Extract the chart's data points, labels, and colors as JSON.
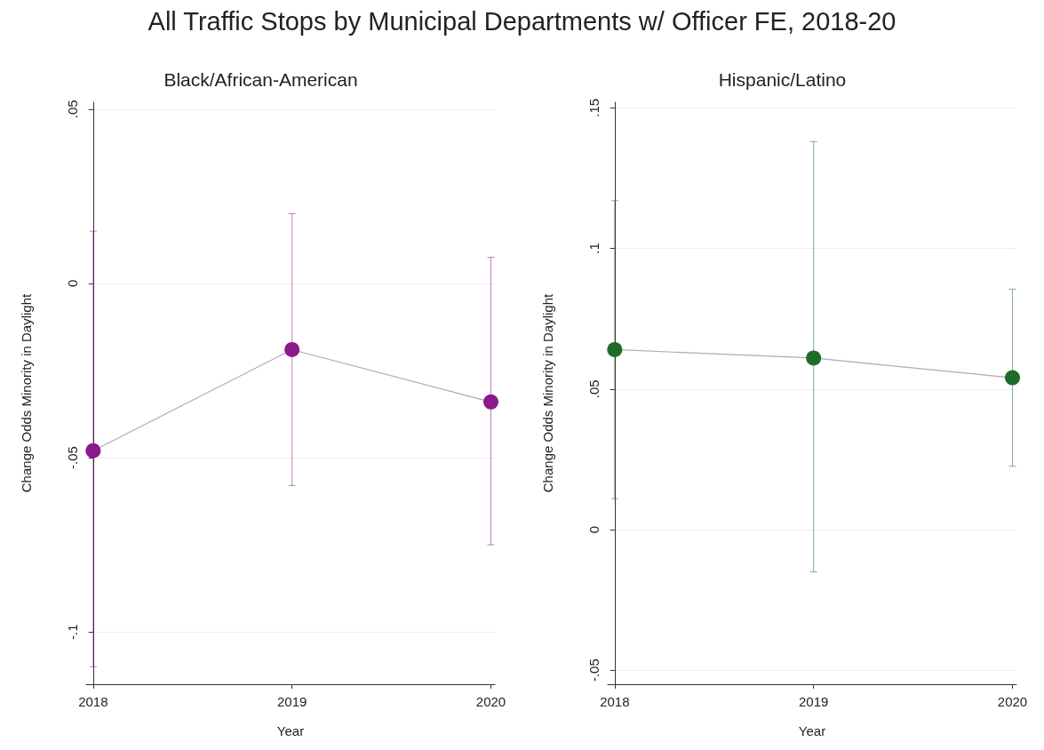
{
  "chart_data": [
    {
      "type": "line",
      "title": "Black/African-American",
      "annotations": [
        "All Traffic Stops by Municipal Departments w/ Officer FE, 2018-20"
      ],
      "xlabel": "Year",
      "ylabel": "Change Odds Minority in Daylight",
      "categories": [
        "2018",
        "2019",
        "2020"
      ],
      "series": [
        {
          "color": "#8b1a8b",
          "values": [
            -0.048,
            -0.019,
            -0.034
          ],
          "errors": [
            [
              -0.11,
              0.015
            ],
            [
              -0.058,
              0.02
            ],
            [
              -0.075,
              0.0075
            ]
          ]
        }
      ],
      "ylim": [
        -0.115,
        0.052
      ],
      "yticks": [
        {
          "value": -0.1,
          "label": "-.1"
        },
        {
          "value": -0.05,
          "label": "-.05"
        },
        0,
        {
          "value": 0.05,
          "label": ".05"
        }
      ],
      "grid": "y",
      "marker": "circle",
      "legend": false
    },
    {
      "type": "line",
      "title": "Hispanic/Latino",
      "xlabel": "Year",
      "ylabel": "Change Odds Minority in Daylight",
      "categories": [
        "2018",
        "2019",
        "2020"
      ],
      "series": [
        {
          "color": "#1e6b2a",
          "values": [
            0.064,
            0.061,
            0.054
          ],
          "errors": [
            [
              0.011,
              0.117
            ],
            [
              -0.015,
              0.138
            ],
            [
              0.0225,
              0.0855
            ]
          ]
        }
      ],
      "ylim": [
        -0.055,
        0.152
      ],
      "yticks": [
        {
          "value": -0.05,
          "label": "-.05"
        },
        0,
        {
          "value": 0.05,
          "label": ".05"
        },
        {
          "value": 0.1,
          "label": ".1"
        },
        {
          "value": 0.15,
          "label": ".15"
        }
      ],
      "grid": "y",
      "marker": "circle",
      "legend": false
    }
  ]
}
